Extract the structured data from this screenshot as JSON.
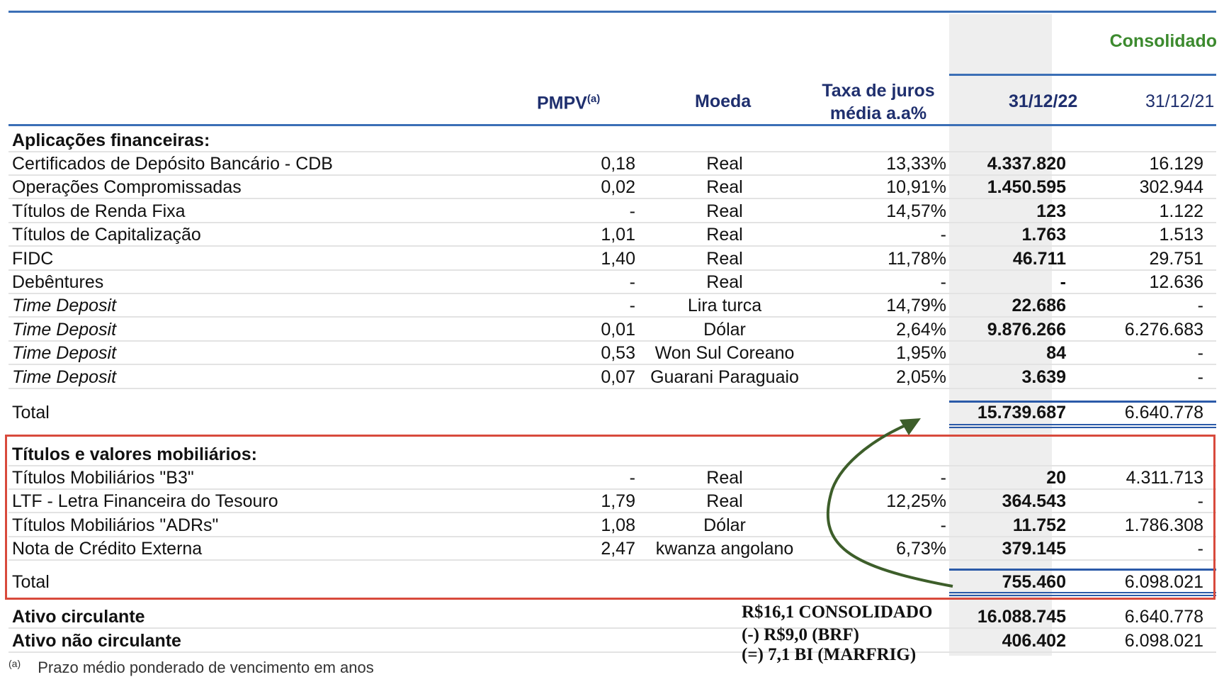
{
  "header": {
    "consolidated_label": "Consolidado",
    "pmpv_label": "PMPV",
    "pmpv_superscript": "(a)",
    "moeda_label": "Moeda",
    "taxa_label_line1": "Taxa de juros",
    "taxa_label_line2": "média a.a%",
    "col_2022": "31/12/22",
    "col_2021": "31/12/21"
  },
  "section1": {
    "title": "Aplicações financeiras:",
    "rows": [
      {
        "label": "Certificados de Depósito Bancário  - CDB",
        "pmpv": "0,18",
        "moeda": "Real",
        "taxa": "13,33%",
        "v2022": "4.337.820",
        "v2021": "16.129",
        "italic": false
      },
      {
        "label": "Operações Compromissadas",
        "pmpv": "0,02",
        "moeda": "Real",
        "taxa": "10,91%",
        "v2022": "1.450.595",
        "v2021": "302.944",
        "italic": false
      },
      {
        "label": "Títulos de Renda Fixa",
        "pmpv": "-",
        "moeda": "Real",
        "taxa": "14,57%",
        "v2022": "123",
        "v2021": "1.122",
        "italic": false
      },
      {
        "label": "Títulos de Capitalização",
        "pmpv": "1,01",
        "moeda": "Real",
        "taxa": "-",
        "v2022": "1.763",
        "v2021": "1.513",
        "italic": false
      },
      {
        "label": "FIDC",
        "pmpv": "1,40",
        "moeda": "Real",
        "taxa": "11,78%",
        "v2022": "46.711",
        "v2021": "29.751",
        "italic": false
      },
      {
        "label": "Debêntures",
        "pmpv": "-",
        "moeda": "Real",
        "taxa": "-",
        "v2022": "-",
        "v2021": "12.636",
        "italic": false
      },
      {
        "label": "Time Deposit",
        "pmpv": "-",
        "moeda": "Lira turca",
        "taxa": "14,79%",
        "v2022": "22.686",
        "v2021": "-",
        "italic": true
      },
      {
        "label": "Time Deposit",
        "pmpv": "0,01",
        "moeda": "Dólar",
        "taxa": "2,64%",
        "v2022": "9.876.266",
        "v2021": "6.276.683",
        "italic": true
      },
      {
        "label": "Time Deposit",
        "pmpv": "0,53",
        "moeda": "Won Sul Coreano",
        "taxa": "1,95%",
        "v2022": "84",
        "v2021": "-",
        "italic": true
      },
      {
        "label": "Time Deposit",
        "pmpv": "0,07",
        "moeda": "Guarani Paraguaio",
        "taxa": "2,05%",
        "v2022": "3.639",
        "v2021": "-",
        "italic": true
      }
    ],
    "total_label": "Total",
    "total_2022": "15.739.687",
    "total_2021": "6.640.778"
  },
  "section2": {
    "title": "Títulos e valores mobiliários:",
    "rows": [
      {
        "label": "Títulos Mobiliários \"B3\"",
        "pmpv": "-",
        "moeda": "Real",
        "taxa": "-",
        "v2022": "20",
        "v2021": "4.311.713",
        "italic": false
      },
      {
        "label": "LTF - Letra Financeira do Tesouro",
        "pmpv": "1,79",
        "moeda": "Real",
        "taxa": "12,25%",
        "v2022": "364.543",
        "v2021": "-",
        "italic": false
      },
      {
        "label": "Títulos Mobiliários \"ADRs\"",
        "pmpv": "1,08",
        "moeda": "Dólar",
        "taxa": "-",
        "v2022": "11.752",
        "v2021": "1.786.308",
        "italic": false
      },
      {
        "label": "Nota de Crédito Externa",
        "pmpv": "2,47",
        "moeda": "kwanza angolano",
        "taxa": "6,73%",
        "v2022": "379.145",
        "v2021": "-",
        "italic": false
      }
    ],
    "total_label": "Total",
    "total_2022": "755.460",
    "total_2021": "6.098.021"
  },
  "summary": [
    {
      "label": "Ativo circulante",
      "v2022": "16.088.745",
      "v2021": "6.640.778"
    },
    {
      "label": "Ativo não circulante",
      "v2022": "406.402",
      "v2021": "6.098.021"
    }
  ],
  "annotation": {
    "line1": "R$16,1 CONSOLIDADO",
    "line2": "(-) R$9,0 (BRF)",
    "line3": "(=)  7,1 BI (MARFRIG)",
    "arrow_color": "#3d5e2a",
    "box_color": "#d84a3c"
  },
  "footnote": {
    "marker": "(a)",
    "text": "Prazo médio ponderado de vencimento em anos"
  }
}
